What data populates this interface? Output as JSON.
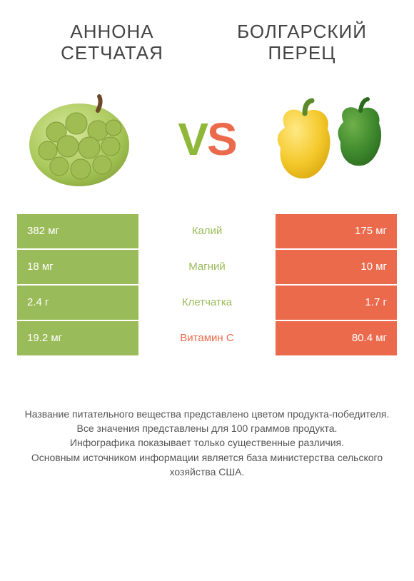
{
  "colors": {
    "green": "#9abb59",
    "red": "#ec6a4c",
    "text": "#444444"
  },
  "header": {
    "left_title": "АННОНА СЕТЧАТАЯ",
    "right_title": "БОЛГАРСКИЙ ПЕРЕЦ",
    "vs_v": "V",
    "vs_s": "S"
  },
  "rows": [
    {
      "nutrient": "Калий",
      "left": "382 мг",
      "right": "175 мг",
      "winner": "left"
    },
    {
      "nutrient": "Магний",
      "left": "18 мг",
      "right": "10 мг",
      "winner": "left"
    },
    {
      "nutrient": "Клетчатка",
      "left": "2.4 г",
      "right": "1.7 г",
      "winner": "left"
    },
    {
      "nutrient": "Витамин C",
      "left": "19.2 мг",
      "right": "80.4 мг",
      "winner": "right"
    }
  ],
  "footnote": {
    "l1": "Название питательного вещества представлено цветом продукта-победителя.",
    "l2": "Все значения представлены для 100 граммов продукта.",
    "l3": "Инфографика показывает только существенные различия.",
    "l4": "Основным источником информации является база министерства сельского хозяйства США."
  }
}
